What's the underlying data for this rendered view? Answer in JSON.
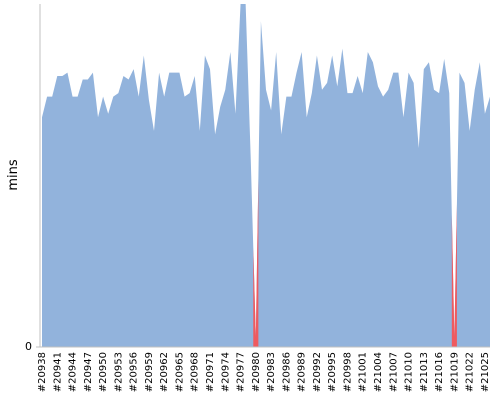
{
  "chart_data": {
    "type": "area",
    "y_label": "mins",
    "ylim": [
      0,
      100
    ],
    "yticks": [
      0
    ],
    "categories": [
      "#20938",
      null,
      null,
      "#20941",
      null,
      null,
      "#20944",
      null,
      null,
      "#20947",
      null,
      null,
      "#20950",
      null,
      null,
      "#20953",
      null,
      null,
      "#20956",
      null,
      null,
      "#20959",
      null,
      null,
      "#20962",
      null,
      null,
      "#20965",
      null,
      null,
      "#20968",
      null,
      null,
      "#20971",
      null,
      null,
      "#20974",
      null,
      null,
      "#20977",
      null,
      null,
      "#20980",
      null,
      null,
      "#20983",
      null,
      null,
      "#20986",
      null,
      null,
      "#20989",
      null,
      null,
      "#20992",
      null,
      null,
      "#20995",
      null,
      null,
      "#20998",
      null,
      null,
      "#21001",
      null,
      null,
      "#21004",
      null,
      null,
      "#21007",
      null,
      null,
      "#21010",
      null,
      null,
      "#21013",
      null,
      null,
      "#21016",
      null,
      null,
      "#21019",
      null,
      null,
      "#21022",
      null,
      null,
      "#21025",
      null
    ],
    "series": [
      {
        "color": "#92b3dc",
        "values": [
          67,
          73,
          73,
          79,
          79,
          80,
          73,
          73,
          78,
          78,
          80,
          67,
          73,
          68,
          73,
          74,
          79,
          78,
          81,
          73,
          85,
          72,
          63,
          80,
          73,
          80,
          80,
          80,
          73,
          74,
          79,
          63,
          85,
          81,
          62,
          70,
          75,
          86,
          68,
          100,
          100,
          55,
          3,
          95,
          75,
          69,
          86,
          62,
          73,
          73,
          80,
          86,
          67,
          74,
          85,
          75,
          77,
          85,
          76,
          87,
          74,
          74,
          79,
          74,
          86,
          83,
          76,
          73,
          75,
          80,
          80,
          67,
          80,
          77,
          58,
          81,
          83,
          75,
          74,
          84,
          74,
          3,
          80,
          77,
          63,
          75,
          83,
          68,
          73
        ],
        "point_colors": [
          "#92b3dc",
          "#92b3dc",
          "#92b3dc",
          "#92b3dc",
          "#92b3dc",
          "#92b3dc",
          "#92b3dc",
          "#92b3dc",
          "#92b3dc",
          "#92b3dc",
          "#92b3dc",
          "#92b3dc",
          "#92b3dc",
          "#92b3dc",
          "#92b3dc",
          "#92b3dc",
          "#92b3dc",
          "#92b3dc",
          "#92b3dc",
          "#92b3dc",
          "#92b3dc",
          "#92b3dc",
          "#92b3dc",
          "#92b3dc",
          "#92b3dc",
          "#92b3dc",
          "#92b3dc",
          "#92b3dc",
          "#92b3dc",
          "#92b3dc",
          "#92b3dc",
          "#92b3dc",
          "#92b3dc",
          "#92b3dc",
          "#92b3dc",
          "#92b3dc",
          "#92b3dc",
          "#92b3dc",
          "#92b3dc",
          "#92b3dc",
          "#92b3dc",
          "#92b3dc",
          "#ef5a5f",
          "#92b3dc",
          "#92b3dc",
          "#92b3dc",
          "#92b3dc",
          "#92b3dc",
          "#92b3dc",
          "#92b3dc",
          "#92b3dc",
          "#92b3dc",
          "#92b3dc",
          "#92b3dc",
          "#92b3dc",
          "#92b3dc",
          "#92b3dc",
          "#92b3dc",
          "#92b3dc",
          "#92b3dc",
          "#92b3dc",
          "#92b3dc",
          "#92b3dc",
          "#92b3dc",
          "#92b3dc",
          "#92b3dc",
          "#92b3dc",
          "#92b3dc",
          "#92b3dc",
          "#92b3dc",
          "#92b3dc",
          "#92b3dc",
          "#92b3dc",
          "#92b3dc",
          "#92b3dc",
          "#92b3dc",
          "#92b3dc",
          "#92b3dc",
          "#92b3dc",
          "#92b3dc",
          "#92b3dc",
          "#ef5a5f",
          "#92b3dc",
          "#92b3dc",
          "#92b3dc",
          "#92b3dc",
          "#92b3dc",
          "#92b3dc",
          "#92b3dc"
        ]
      }
    ]
  }
}
